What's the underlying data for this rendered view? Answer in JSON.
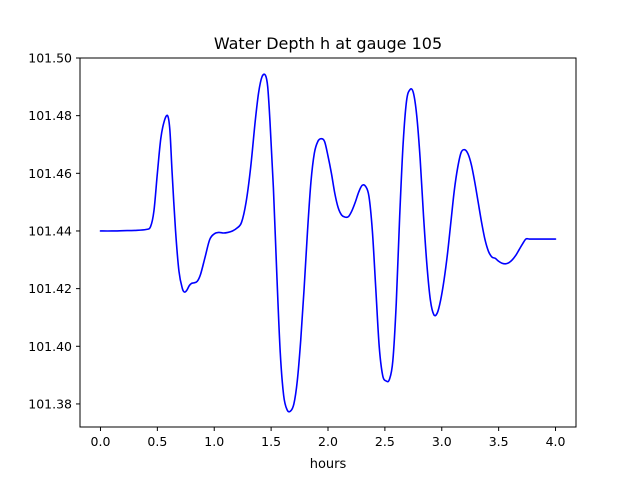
{
  "chart_data": {
    "type": "line",
    "title": "Water Depth h at gauge 105",
    "xlabel": "hours",
    "ylabel": "",
    "xlim": [
      -0.18,
      4.18
    ],
    "ylim": [
      101.372,
      101.5
    ],
    "x_ticks": [
      0.0,
      0.5,
      1.0,
      1.5,
      2.0,
      2.5,
      3.0,
      3.5,
      4.0
    ],
    "x_tick_labels": [
      "0.0",
      "0.5",
      "1.0",
      "1.5",
      "2.0",
      "2.5",
      "3.0",
      "3.5",
      "4.0"
    ],
    "y_ticks": [
      101.38,
      101.4,
      101.42,
      101.44,
      101.46,
      101.48,
      101.5
    ],
    "y_tick_labels": [
      "101.38",
      "101.40",
      "101.42",
      "101.44",
      "101.46",
      "101.48",
      "101.50"
    ],
    "grid": false,
    "line_color": "#0000ff",
    "series": [
      {
        "name": "",
        "x": [
          0.0,
          0.1,
          0.2,
          0.3,
          0.4,
          0.44,
          0.47,
          0.5,
          0.53,
          0.56,
          0.59,
          0.61,
          0.63,
          0.66,
          0.69,
          0.72,
          0.74,
          0.76,
          0.78,
          0.8,
          0.82,
          0.85,
          0.88,
          0.92,
          0.96,
          1.0,
          1.04,
          1.08,
          1.12,
          1.16,
          1.2,
          1.24,
          1.28,
          1.32,
          1.36,
          1.39,
          1.42,
          1.45,
          1.47,
          1.49,
          1.52,
          1.55,
          1.58,
          1.61,
          1.64,
          1.67,
          1.7,
          1.73,
          1.76,
          1.79,
          1.82,
          1.85,
          1.88,
          1.91,
          1.94,
          1.97,
          2.0,
          2.03,
          2.06,
          2.09,
          2.12,
          2.15,
          2.18,
          2.21,
          2.24,
          2.27,
          2.3,
          2.33,
          2.36,
          2.39,
          2.42,
          2.45,
          2.48,
          2.51,
          2.54,
          2.57,
          2.6,
          2.63,
          2.66,
          2.69,
          2.72,
          2.75,
          2.78,
          2.81,
          2.84,
          2.87,
          2.9,
          2.93,
          2.96,
          2.99,
          3.02,
          3.05,
          3.08,
          3.11,
          3.14,
          3.17,
          3.2,
          3.23,
          3.26,
          3.29,
          3.32,
          3.35,
          3.38,
          3.41,
          3.44,
          3.47,
          3.5,
          3.53,
          3.56,
          3.59,
          3.62,
          3.65,
          3.68,
          3.71,
          3.74,
          3.77,
          3.8,
          3.83,
          3.86,
          3.89,
          3.92,
          3.95,
          3.98,
          4.0
        ],
        "y": [
          101.44,
          101.44,
          101.4401,
          101.4402,
          101.4405,
          101.4415,
          101.447,
          101.46,
          101.472,
          101.478,
          101.48,
          101.475,
          101.46,
          101.44,
          101.426,
          101.42,
          101.4188,
          101.4195,
          101.421,
          101.4218,
          101.422,
          101.4225,
          101.425,
          101.431,
          101.437,
          101.439,
          101.4395,
          101.4393,
          101.4395,
          101.44,
          101.441,
          101.443,
          101.45,
          101.462,
          101.478,
          101.488,
          101.4935,
          101.494,
          101.49,
          101.478,
          101.455,
          101.425,
          101.398,
          101.383,
          101.378,
          101.3775,
          101.38,
          101.388,
          101.402,
          101.42,
          101.44,
          101.457,
          101.467,
          101.471,
          101.472,
          101.471,
          101.466,
          101.46,
          101.453,
          101.448,
          101.4455,
          101.4448,
          101.445,
          101.447,
          101.45,
          101.4535,
          101.4558,
          101.4555,
          101.452,
          101.44,
          101.42,
          101.4,
          101.39,
          101.388,
          101.3885,
          101.395,
          101.415,
          101.445,
          101.47,
          101.485,
          101.489,
          101.488,
          101.48,
          101.465,
          101.445,
          101.428,
          101.416,
          101.411,
          101.4115,
          101.416,
          101.423,
          101.432,
          101.443,
          101.454,
          101.462,
          101.4672,
          101.4682,
          101.4668,
          101.463,
          101.457,
          101.45,
          101.443,
          101.437,
          101.433,
          101.431,
          101.4305,
          101.4295,
          101.4288,
          101.4286,
          101.429,
          101.43,
          101.4315,
          101.4335,
          101.4355,
          101.4372,
          101.4372,
          101.4372,
          101.4372,
          101.4372,
          101.4372,
          101.4372,
          101.4372,
          101.4372,
          101.4372
        ]
      }
    ]
  }
}
